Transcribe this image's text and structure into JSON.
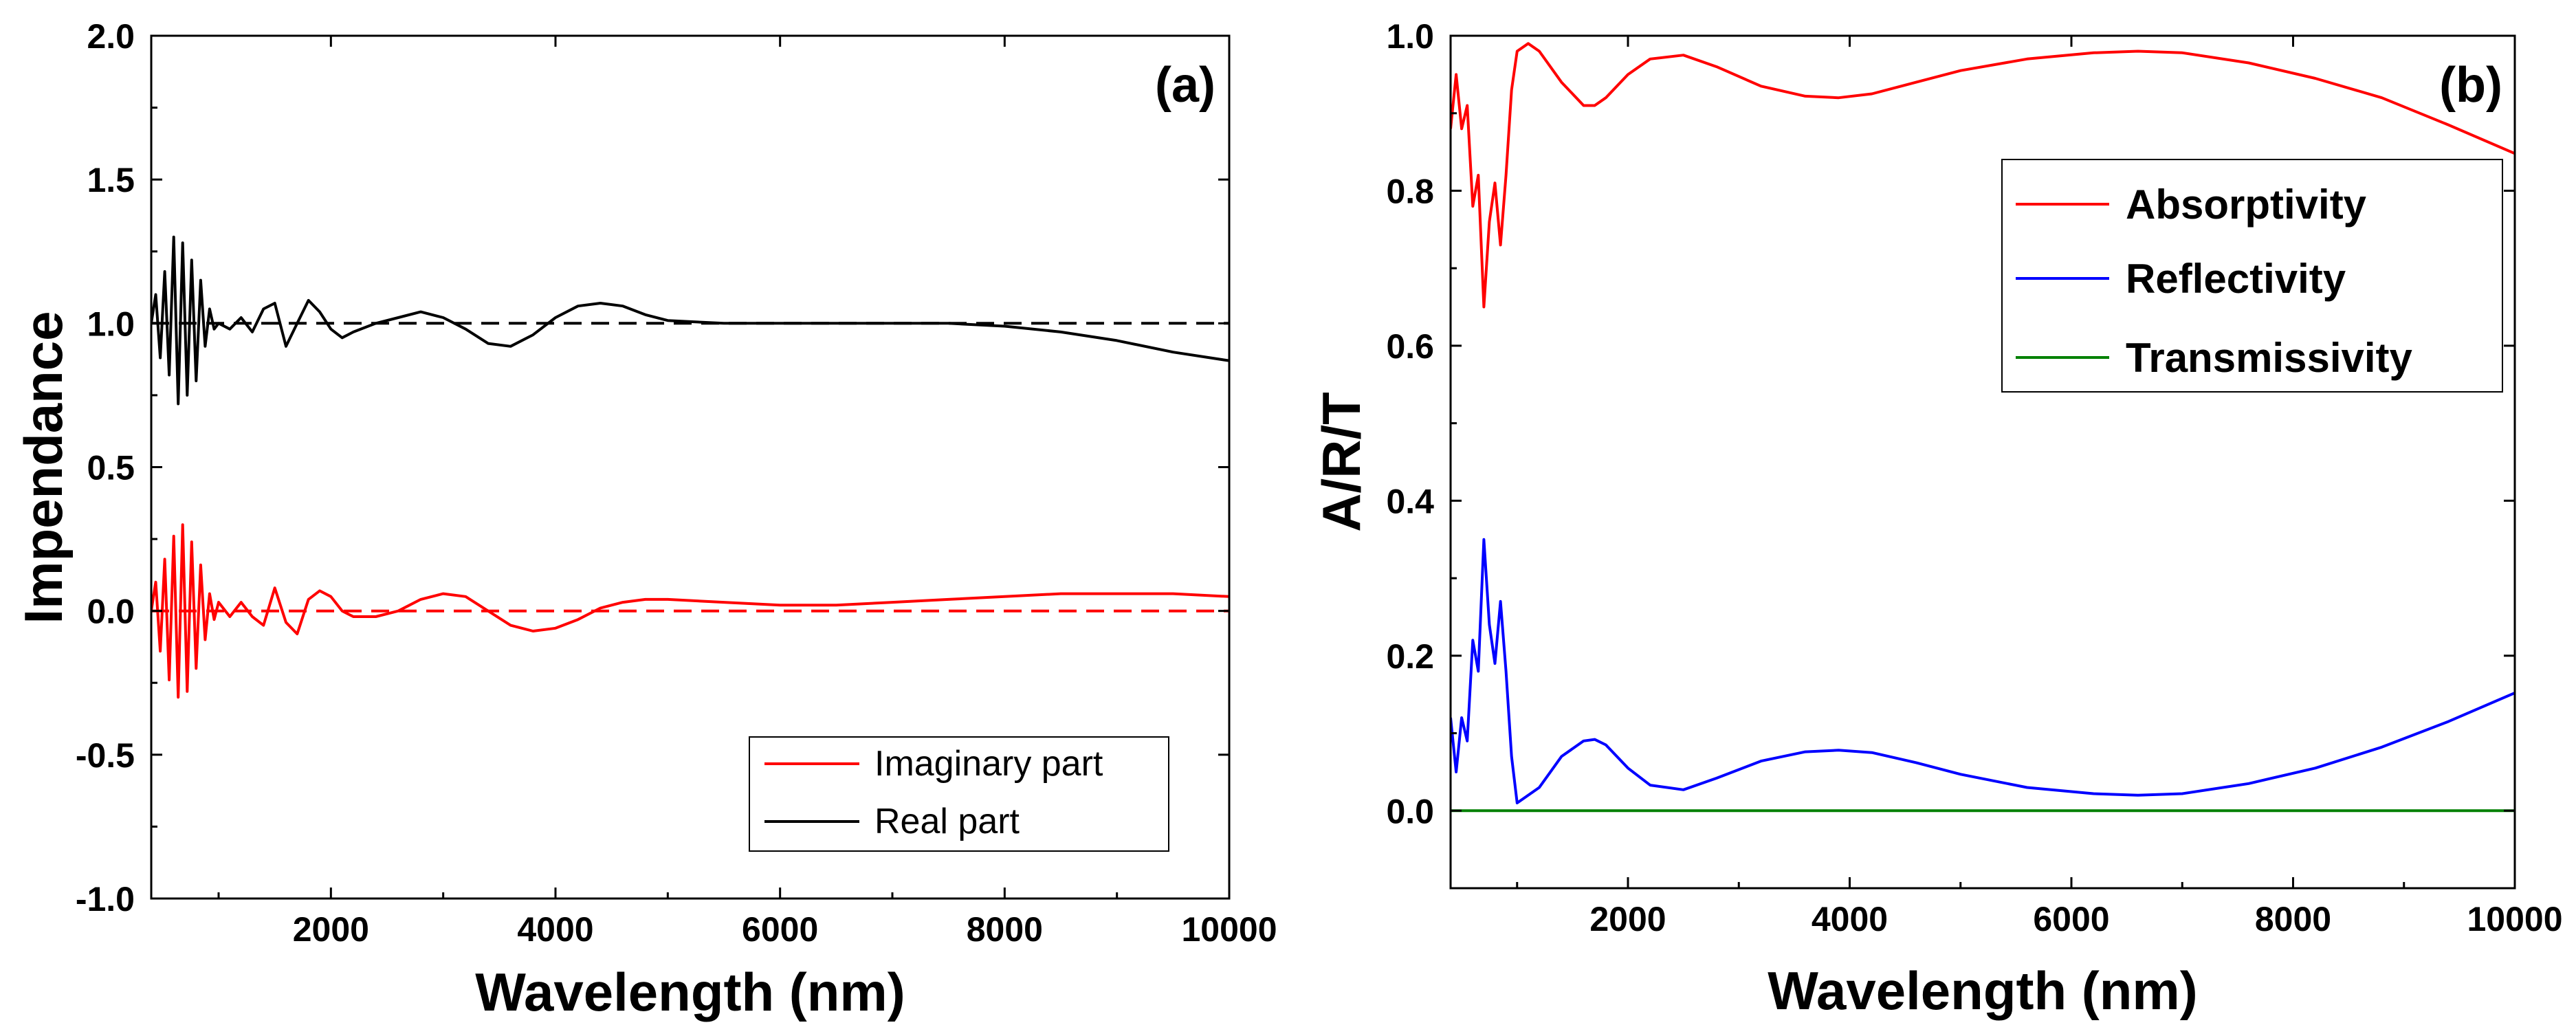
{
  "chart_data": [
    {
      "panel": "(a)",
      "type": "line",
      "xlabel": "Wavelength (nm)",
      "ylabel": "Impendance",
      "xlim": [
        400,
        10000
      ],
      "ylim": [
        -1.0,
        2.0
      ],
      "xticks": [
        2000,
        4000,
        6000,
        8000,
        10000
      ],
      "yticks": [
        -1.0,
        -0.5,
        0.0,
        0.5,
        1.0,
        1.5,
        2.0
      ],
      "xtick_labels": [
        "2000",
        "4000",
        "6000",
        "8000",
        "10000"
      ],
      "ytick_labels": [
        "-1.0",
        "-0.5",
        "0.0",
        "0.5",
        "1.0",
        "1.5",
        "2.0"
      ],
      "legend_position": "bottom-right",
      "series": [
        {
          "name": "Imaginary part",
          "color": "#ff0000",
          "style": "solid",
          "x": [
            400,
            440,
            480,
            520,
            560,
            600,
            640,
            680,
            720,
            760,
            800,
            840,
            880,
            920,
            960,
            1000,
            1100,
            1200,
            1300,
            1400,
            1500,
            1600,
            1700,
            1800,
            1900,
            2000,
            2100,
            2200,
            2400,
            2600,
            2800,
            3000,
            3200,
            3400,
            3600,
            3800,
            4000,
            4200,
            4400,
            4600,
            4800,
            5000,
            5500,
            6000,
            6500,
            7000,
            7500,
            8000,
            8500,
            9000,
            9500,
            10000
          ],
          "y": [
            0.0,
            0.1,
            -0.14,
            0.18,
            -0.24,
            0.26,
            -0.3,
            0.3,
            -0.28,
            0.24,
            -0.2,
            0.16,
            -0.1,
            0.06,
            -0.03,
            0.03,
            -0.02,
            0.03,
            -0.02,
            -0.05,
            0.08,
            -0.04,
            -0.08,
            0.04,
            0.07,
            0.05,
            0.0,
            -0.02,
            -0.02,
            0.0,
            0.04,
            0.06,
            0.05,
            0.0,
            -0.05,
            -0.07,
            -0.06,
            -0.03,
            0.01,
            0.03,
            0.04,
            0.04,
            0.03,
            0.02,
            0.02,
            0.03,
            0.04,
            0.05,
            0.06,
            0.06,
            0.06,
            0.05
          ]
        },
        {
          "name": "Real part",
          "color": "#000000",
          "style": "solid",
          "x": [
            400,
            440,
            480,
            520,
            560,
            600,
            640,
            680,
            720,
            760,
            800,
            840,
            880,
            920,
            960,
            1000,
            1100,
            1200,
            1300,
            1400,
            1500,
            1600,
            1700,
            1800,
            1900,
            2000,
            2100,
            2200,
            2400,
            2600,
            2800,
            3000,
            3200,
            3400,
            3600,
            3800,
            4000,
            4200,
            4400,
            4600,
            4800,
            5000,
            5500,
            6000,
            6500,
            7000,
            7500,
            8000,
            8500,
            9000,
            9500,
            10000
          ],
          "y": [
            1.0,
            1.1,
            0.88,
            1.18,
            0.82,
            1.3,
            0.72,
            1.28,
            0.75,
            1.22,
            0.8,
            1.15,
            0.92,
            1.05,
            0.98,
            1.0,
            0.98,
            1.02,
            0.97,
            1.05,
            1.07,
            0.92,
            1.0,
            1.08,
            1.04,
            0.98,
            0.95,
            0.97,
            1.0,
            1.02,
            1.04,
            1.02,
            0.98,
            0.93,
            0.92,
            0.96,
            1.02,
            1.06,
            1.07,
            1.06,
            1.03,
            1.01,
            1.0,
            1.0,
            1.0,
            1.0,
            1.0,
            0.99,
            0.97,
            0.94,
            0.9,
            0.87
          ]
        },
        {
          "name": "",
          "color": "#000000",
          "style": "dashed",
          "x": [
            400,
            10000
          ],
          "y": [
            1.0,
            1.0
          ]
        },
        {
          "name": "",
          "color": "#ff0000",
          "style": "dashed",
          "x": [
            400,
            10000
          ],
          "y": [
            0.0,
            0.0
          ]
        }
      ]
    },
    {
      "panel": "(b)",
      "type": "line",
      "xlabel": "Wavelength (nm)",
      "ylabel": "A/R/T",
      "xlim": [
        400,
        10000
      ],
      "ylim": [
        -0.1,
        1.0
      ],
      "xticks": [
        2000,
        4000,
        6000,
        8000,
        10000
      ],
      "yticks": [
        0.0,
        0.2,
        0.4,
        0.6,
        0.8,
        1.0
      ],
      "xtick_labels": [
        "2000",
        "4000",
        "6000",
        "8000",
        "10000"
      ],
      "ytick_labels": [
        "0.0",
        "0.2",
        "0.4",
        "0.6",
        "0.8",
        "1.0"
      ],
      "legend_position": "top-right",
      "series": [
        {
          "name": "Absorptivity",
          "color": "#ff0000",
          "style": "solid",
          "x": [
            400,
            450,
            500,
            550,
            600,
            650,
            700,
            750,
            800,
            850,
            900,
            950,
            1000,
            1100,
            1200,
            1400,
            1600,
            1700,
            1800,
            2000,
            2200,
            2500,
            2800,
            3200,
            3600,
            3900,
            4200,
            4600,
            5000,
            5600,
            6200,
            6600,
            7000,
            7600,
            8200,
            8800,
            9400,
            10000
          ],
          "y": [
            0.88,
            0.95,
            0.88,
            0.91,
            0.78,
            0.82,
            0.65,
            0.76,
            0.81,
            0.73,
            0.82,
            0.93,
            0.98,
            0.99,
            0.98,
            0.94,
            0.91,
            0.91,
            0.92,
            0.95,
            0.97,
            0.975,
            0.96,
            0.935,
            0.922,
            0.92,
            0.925,
            0.94,
            0.955,
            0.97,
            0.978,
            0.98,
            0.978,
            0.965,
            0.945,
            0.92,
            0.885,
            0.848
          ]
        },
        {
          "name": "Reflectivity",
          "color": "#0000ff",
          "style": "solid",
          "x": [
            400,
            450,
            500,
            550,
            600,
            650,
            700,
            750,
            800,
            850,
            900,
            950,
            1000,
            1100,
            1200,
            1400,
            1600,
            1700,
            1800,
            2000,
            2200,
            2500,
            2800,
            3200,
            3600,
            3900,
            4200,
            4600,
            5000,
            5600,
            6200,
            6600,
            7000,
            7600,
            8200,
            8800,
            9400,
            10000
          ],
          "y": [
            0.12,
            0.05,
            0.12,
            0.09,
            0.22,
            0.18,
            0.35,
            0.24,
            0.19,
            0.27,
            0.18,
            0.07,
            0.01,
            0.02,
            0.03,
            0.07,
            0.09,
            0.092,
            0.085,
            0.055,
            0.033,
            0.027,
            0.042,
            0.064,
            0.076,
            0.078,
            0.075,
            0.062,
            0.047,
            0.03,
            0.022,
            0.02,
            0.022,
            0.035,
            0.055,
            0.082,
            0.115,
            0.152
          ]
        },
        {
          "name": "Transmissivity",
          "color": "#008000",
          "style": "solid",
          "x": [
            400,
            10000
          ],
          "y": [
            0.0,
            0.0
          ]
        }
      ]
    }
  ]
}
